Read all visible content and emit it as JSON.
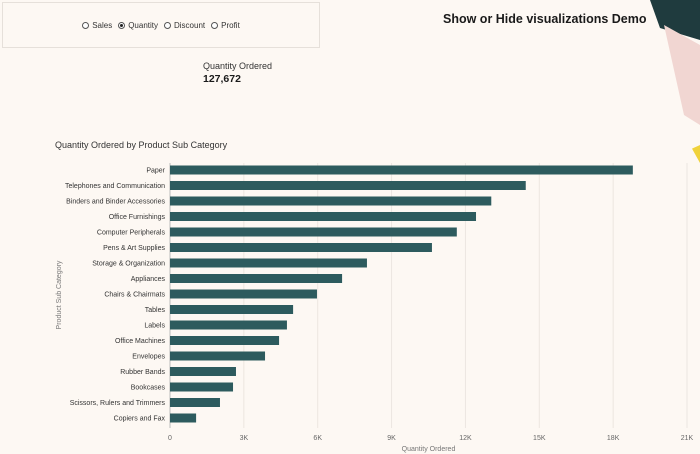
{
  "header": {
    "title": "Show or Hide visualizations Demo"
  },
  "filter": {
    "options": [
      {
        "label": "Sales",
        "selected": false
      },
      {
        "label": "Quantity",
        "selected": true
      },
      {
        "label": "Discount",
        "selected": false
      },
      {
        "label": "Profit",
        "selected": false
      }
    ]
  },
  "kpi": {
    "label": "Quantity Ordered",
    "value": "127,672"
  },
  "colors": {
    "bar": "#2d5b5e",
    "background": "#fdf8f3"
  },
  "chart_data": {
    "type": "bar",
    "orientation": "horizontal",
    "title": "Quantity Ordered by Product Sub Category",
    "xlabel": "Quantity Ordered",
    "ylabel": "Product Sub Category",
    "xlim": [
      0,
      21000
    ],
    "xticks": [
      "0",
      "3K",
      "6K",
      "9K",
      "12K",
      "15K",
      "18K",
      "21K"
    ],
    "grid": true,
    "categories": [
      "Paper",
      "Telephones and Communication",
      "Binders and Binder Accessories",
      "Office Furnishings",
      "Computer Peripherals",
      "Pens & Art Supplies",
      "Storage & Organization",
      "Appliances",
      "Chairs & Chairmats",
      "Tables",
      "Labels",
      "Office Machines",
      "Envelopes",
      "Rubber Bands",
      "Bookcases",
      "Scissors, Rulers and Trimmers",
      "Copiers and Fax"
    ],
    "values": [
      18800,
      14450,
      13050,
      12430,
      11650,
      10640,
      8000,
      6990,
      5970,
      5000,
      4750,
      4430,
      3860,
      2680,
      2560,
      2030,
      1060
    ]
  }
}
